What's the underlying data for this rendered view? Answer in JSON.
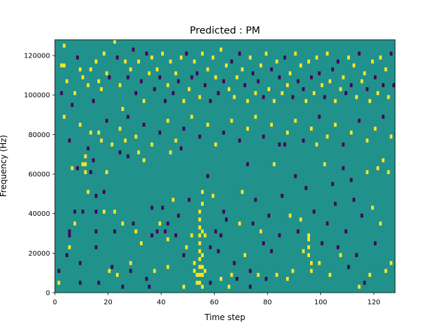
{
  "chart_data": {
    "type": "heatmap",
    "title": "Predicted : PM",
    "xlabel": "Time step",
    "ylabel": "Frequency (Hz)",
    "xlim": [
      0,
      128
    ],
    "ylim": [
      0,
      128000
    ],
    "xticks": [
      0,
      20,
      40,
      60,
      80,
      100,
      120
    ],
    "yticks": [
      0,
      20000,
      40000,
      60000,
      80000,
      100000,
      120000
    ],
    "grid": false,
    "legend": "none",
    "value_levels": [
      -1,
      0,
      1
    ],
    "colors": {
      "-1": "#440154",
      "0": "#21918c",
      "1": "#fde725"
    },
    "background_value": 0,
    "bin_width_steps": 1,
    "bin_height_hz": 2000,
    "cells": [
      [
        1,
        4000,
        1
      ],
      [
        1,
        10000,
        -1
      ],
      [
        2,
        114000,
        1
      ],
      [
        3,
        114000,
        1
      ],
      [
        3,
        124000,
        1
      ],
      [
        4,
        18000,
        -1
      ],
      [
        5,
        30000,
        -1
      ],
      [
        5,
        28000,
        -1
      ],
      [
        5,
        22000,
        1
      ],
      [
        6,
        62000,
        1
      ],
      [
        7,
        40000,
        -1
      ],
      [
        7,
        34000,
        1
      ],
      [
        8,
        62000,
        -1
      ],
      [
        9,
        14000,
        -1
      ],
      [
        9,
        4000,
        -1
      ],
      [
        10,
        64000,
        1
      ],
      [
        10,
        40000,
        -1
      ],
      [
        11,
        68000,
        1
      ],
      [
        11,
        60000,
        1
      ],
      [
        11,
        64000,
        1
      ],
      [
        12,
        50000,
        1
      ],
      [
        13,
        80000,
        1
      ],
      [
        13,
        60000,
        -1
      ],
      [
        14,
        66000,
        -1
      ],
      [
        15,
        48000,
        -1
      ],
      [
        15,
        40000,
        -1
      ],
      [
        15,
        30000,
        -1
      ],
      [
        15,
        22000,
        -1
      ],
      [
        16,
        4000,
        -1
      ],
      [
        17,
        76000,
        1
      ],
      [
        18,
        40000,
        1
      ],
      [
        18,
        50000,
        -1
      ],
      [
        19,
        60000,
        1
      ],
      [
        20,
        10000,
        1
      ],
      [
        21,
        12000,
        -1
      ],
      [
        22,
        40000,
        1
      ],
      [
        22,
        30000,
        -1
      ],
      [
        23,
        8000,
        1
      ],
      [
        24,
        70000,
        -1
      ],
      [
        25,
        34000,
        1
      ],
      [
        25,
        2000,
        -1
      ],
      [
        26,
        76000,
        1
      ],
      [
        27,
        68000,
        -1
      ],
      [
        28,
        10000,
        -1
      ],
      [
        28,
        14000,
        1
      ],
      [
        29,
        34000,
        -1
      ],
      [
        30,
        30000,
        1
      ],
      [
        31,
        70000,
        1
      ],
      [
        32,
        24000,
        1
      ],
      [
        33,
        66000,
        1
      ],
      [
        34,
        6000,
        -1
      ],
      [
        35,
        2000,
        -1
      ],
      [
        36,
        42000,
        -1
      ],
      [
        36,
        28000,
        -1
      ],
      [
        37,
        10000,
        1
      ],
      [
        38,
        30000,
        -1
      ],
      [
        39,
        34000,
        1
      ],
      [
        40,
        42000,
        -1
      ],
      [
        41,
        30000,
        -1
      ],
      [
        42,
        26000,
        1
      ],
      [
        42,
        34000,
        -1
      ],
      [
        42,
        12000,
        1
      ],
      [
        43,
        70000,
        1
      ],
      [
        44,
        46000,
        1
      ],
      [
        45,
        28000,
        -1
      ],
      [
        46,
        38000,
        -1
      ],
      [
        47,
        72000,
        -1
      ],
      [
        48,
        18000,
        -1
      ],
      [
        48,
        2000,
        1
      ],
      [
        49,
        22000,
        1
      ],
      [
        50,
        46000,
        -1
      ],
      [
        51,
        28000,
        1
      ],
      [
        52,
        14000,
        1
      ],
      [
        52,
        10000,
        1
      ],
      [
        53,
        4000,
        1
      ],
      [
        53,
        8000,
        1
      ],
      [
        54,
        40000,
        1
      ],
      [
        54,
        36000,
        1
      ],
      [
        54,
        32000,
        1
      ],
      [
        54,
        28000,
        1
      ],
      [
        54,
        24000,
        1
      ],
      [
        54,
        20000,
        1
      ],
      [
        54,
        16000,
        1
      ],
      [
        54,
        12000,
        1
      ],
      [
        54,
        8000,
        1
      ],
      [
        54,
        4000,
        1
      ],
      [
        55,
        50000,
        1
      ],
      [
        55,
        44000,
        1
      ],
      [
        55,
        30000,
        1
      ],
      [
        55,
        18000,
        1
      ],
      [
        55,
        12000,
        1
      ],
      [
        55,
        8000,
        1
      ],
      [
        55,
        2000,
        1
      ],
      [
        56,
        28000,
        1
      ],
      [
        56,
        10000,
        1
      ],
      [
        57,
        58000,
        -1
      ],
      [
        58,
        4000,
        -1
      ],
      [
        58,
        22000,
        -1
      ],
      [
        59,
        48000,
        1
      ],
      [
        60,
        30000,
        -1
      ],
      [
        61,
        20000,
        -1
      ],
      [
        62,
        28000,
        -1
      ],
      [
        62,
        6000,
        1
      ],
      [
        63,
        40000,
        -1
      ],
      [
        64,
        36000,
        -1
      ],
      [
        65,
        2000,
        1
      ],
      [
        66,
        8000,
        1
      ],
      [
        67,
        14000,
        -1
      ],
      [
        68,
        6000,
        -1
      ],
      [
        69,
        34000,
        1
      ],
      [
        70,
        50000,
        1
      ],
      [
        71,
        18000,
        1
      ],
      [
        72,
        64000,
        -1
      ],
      [
        73,
        10000,
        -1
      ],
      [
        73,
        2000,
        -1
      ],
      [
        74,
        34000,
        -1
      ],
      [
        75,
        46000,
        -1
      ],
      [
        76,
        8000,
        1
      ],
      [
        77,
        30000,
        1
      ],
      [
        78,
        24000,
        -1
      ],
      [
        79,
        6000,
        -1
      ],
      [
        80,
        38000,
        -1
      ],
      [
        81,
        20000,
        -1
      ],
      [
        82,
        64000,
        1
      ],
      [
        83,
        8000,
        1
      ],
      [
        84,
        28000,
        -1
      ],
      [
        85,
        48000,
        -1
      ],
      [
        86,
        74000,
        -1
      ],
      [
        87,
        6000,
        1
      ],
      [
        88,
        38000,
        1
      ],
      [
        89,
        10000,
        1
      ],
      [
        90,
        58000,
        -1
      ],
      [
        91,
        30000,
        -1
      ],
      [
        92,
        36000,
        1
      ],
      [
        93,
        20000,
        1
      ],
      [
        94,
        52000,
        -1
      ],
      [
        95,
        28000,
        1
      ],
      [
        95,
        26000,
        1
      ],
      [
        95,
        22000,
        1
      ],
      [
        95,
        18000,
        1
      ],
      [
        96,
        14000,
        1
      ],
      [
        96,
        10000,
        1
      ],
      [
        97,
        40000,
        -1
      ],
      [
        98,
        74000,
        1
      ],
      [
        99,
        14000,
        1
      ],
      [
        100,
        24000,
        -1
      ],
      [
        101,
        64000,
        1
      ],
      [
        102,
        34000,
        -1
      ],
      [
        103,
        8000,
        1
      ],
      [
        104,
        54000,
        -1
      ],
      [
        105,
        44000,
        -1
      ],
      [
        106,
        22000,
        -1
      ],
      [
        107,
        18000,
        1
      ],
      [
        108,
        62000,
        -1
      ],
      [
        109,
        30000,
        -1
      ],
      [
        110,
        12000,
        -1
      ],
      [
        111,
        56000,
        -1
      ],
      [
        112,
        46000,
        -1
      ],
      [
        113,
        18000,
        -1
      ],
      [
        114,
        2000,
        1
      ],
      [
        115,
        38000,
        -1
      ],
      [
        116,
        4000,
        -1
      ],
      [
        117,
        60000,
        1
      ],
      [
        118,
        8000,
        1
      ],
      [
        119,
        42000,
        1
      ],
      [
        120,
        24000,
        -1
      ],
      [
        121,
        62000,
        1
      ],
      [
        122,
        34000,
        1
      ],
      [
        123,
        66000,
        1
      ],
      [
        124,
        10000,
        1
      ],
      [
        125,
        60000,
        1
      ],
      [
        126,
        14000,
        1
      ],
      [
        127,
        104000,
        -1
      ],
      [
        2,
        100000,
        -1
      ],
      [
        4,
        106000,
        1
      ],
      [
        6,
        94000,
        -1
      ],
      [
        7,
        100000,
        1
      ],
      [
        8,
        118000,
        -1
      ],
      [
        9,
        112000,
        1
      ],
      [
        10,
        108000,
        1
      ],
      [
        12,
        104000,
        1
      ],
      [
        13,
        112000,
        1
      ],
      [
        14,
        96000,
        -1
      ],
      [
        15,
        116000,
        1
      ],
      [
        16,
        106000,
        1
      ],
      [
        17,
        102000,
        1
      ],
      [
        18,
        120000,
        1
      ],
      [
        19,
        110000,
        1
      ],
      [
        20,
        108000,
        -1
      ],
      [
        22,
        126000,
        1
      ],
      [
        23,
        118000,
        -1
      ],
      [
        24,
        104000,
        1
      ],
      [
        25,
        92000,
        1
      ],
      [
        26,
        116000,
        1
      ],
      [
        27,
        108000,
        -1
      ],
      [
        28,
        112000,
        1
      ],
      [
        29,
        122000,
        -1
      ],
      [
        30,
        100000,
        -1
      ],
      [
        31,
        116000,
        1
      ],
      [
        32,
        106000,
        -1
      ],
      [
        33,
        96000,
        1
      ],
      [
        34,
        120000,
        -1
      ],
      [
        35,
        110000,
        1
      ],
      [
        36,
        118000,
        1
      ],
      [
        37,
        102000,
        -1
      ],
      [
        38,
        112000,
        1
      ],
      [
        39,
        108000,
        -1
      ],
      [
        40,
        120000,
        1
      ],
      [
        41,
        96000,
        -1
      ],
      [
        42,
        104000,
        1
      ],
      [
        43,
        116000,
        1
      ],
      [
        44,
        100000,
        -1
      ],
      [
        45,
        110000,
        1
      ],
      [
        46,
        106000,
        -1
      ],
      [
        47,
        118000,
        1
      ],
      [
        48,
        96000,
        1
      ],
      [
        49,
        120000,
        -1
      ],
      [
        50,
        102000,
        1
      ],
      [
        51,
        108000,
        -1
      ],
      [
        52,
        116000,
        1
      ],
      [
        53,
        110000,
        -1
      ],
      [
        54,
        98000,
        1
      ],
      [
        55,
        120000,
        1
      ],
      [
        56,
        104000,
        -1
      ],
      [
        57,
        112000,
        1
      ],
      [
        58,
        96000,
        -1
      ],
      [
        59,
        118000,
        1
      ],
      [
        60,
        108000,
        1
      ],
      [
        61,
        100000,
        -1
      ],
      [
        62,
        122000,
        1
      ],
      [
        63,
        106000,
        -1
      ],
      [
        64,
        114000,
        1
      ],
      [
        65,
        102000,
        1
      ],
      [
        66,
        116000,
        -1
      ],
      [
        67,
        98000,
        1
      ],
      [
        68,
        108000,
        1
      ],
      [
        69,
        120000,
        -1
      ],
      [
        70,
        112000,
        1
      ],
      [
        71,
        104000,
        -1
      ],
      [
        72,
        96000,
        1
      ],
      [
        73,
        118000,
        1
      ],
      [
        74,
        110000,
        -1
      ],
      [
        75,
        100000,
        1
      ],
      [
        76,
        106000,
        -1
      ],
      [
        77,
        114000,
        1
      ],
      [
        78,
        98000,
        -1
      ],
      [
        79,
        120000,
        1
      ],
      [
        80,
        102000,
        1
      ],
      [
        81,
        112000,
        -1
      ],
      [
        82,
        96000,
        1
      ],
      [
        83,
        116000,
        1
      ],
      [
        84,
        108000,
        -1
      ],
      [
        85,
        100000,
        1
      ],
      [
        86,
        118000,
        -1
      ],
      [
        87,
        104000,
        1
      ],
      [
        88,
        110000,
        1
      ],
      [
        89,
        98000,
        -1
      ],
      [
        90,
        120000,
        1
      ],
      [
        91,
        106000,
        -1
      ],
      [
        92,
        114000,
        1
      ],
      [
        93,
        102000,
        -1
      ],
      [
        94,
        96000,
        1
      ],
      [
        95,
        116000,
        1
      ],
      [
        96,
        108000,
        -1
      ],
      [
        97,
        100000,
        1
      ],
      [
        98,
        118000,
        1
      ],
      [
        99,
        110000,
        -1
      ],
      [
        100,
        104000,
        1
      ],
      [
        101,
        98000,
        -1
      ],
      [
        102,
        120000,
        1
      ],
      [
        103,
        106000,
        1
      ],
      [
        104,
        112000,
        -1
      ],
      [
        105,
        96000,
        1
      ],
      [
        106,
        116000,
        -1
      ],
      [
        107,
        102000,
        1
      ],
      [
        108,
        108000,
        1
      ],
      [
        109,
        100000,
        -1
      ],
      [
        110,
        118000,
        1
      ],
      [
        111,
        104000,
        -1
      ],
      [
        112,
        114000,
        1
      ],
      [
        113,
        98000,
        1
      ],
      [
        114,
        120000,
        -1
      ],
      [
        115,
        106000,
        1
      ],
      [
        116,
        110000,
        1
      ],
      [
        117,
        102000,
        -1
      ],
      [
        118,
        96000,
        1
      ],
      [
        119,
        116000,
        1
      ],
      [
        120,
        108000,
        -1
      ],
      [
        121,
        100000,
        1
      ],
      [
        122,
        118000,
        1
      ],
      [
        123,
        104000,
        -1
      ],
      [
        124,
        112000,
        1
      ],
      [
        125,
        98000,
        1
      ],
      [
        126,
        120000,
        -1
      ],
      [
        3,
        88000,
        1
      ],
      [
        5,
        76000,
        -1
      ],
      [
        9,
        84000,
        1
      ],
      [
        12,
        72000,
        -1
      ],
      [
        16,
        80000,
        1
      ],
      [
        19,
        86000,
        -1
      ],
      [
        21,
        74000,
        1
      ],
      [
        24,
        82000,
        1
      ],
      [
        27,
        88000,
        -1
      ],
      [
        30,
        78000,
        1
      ],
      [
        33,
        84000,
        -1
      ],
      [
        36,
        74000,
        1
      ],
      [
        39,
        80000,
        -1
      ],
      [
        42,
        86000,
        1
      ],
      [
        45,
        76000,
        1
      ],
      [
        48,
        82000,
        -1
      ],
      [
        51,
        88000,
        1
      ],
      [
        54,
        78000,
        -1
      ],
      [
        57,
        84000,
        1
      ],
      [
        60,
        74000,
        1
      ],
      [
        63,
        80000,
        -1
      ],
      [
        66,
        86000,
        1
      ],
      [
        69,
        76000,
        -1
      ],
      [
        72,
        82000,
        1
      ],
      [
        75,
        88000,
        1
      ],
      [
        78,
        78000,
        -1
      ],
      [
        81,
        84000,
        1
      ],
      [
        84,
        74000,
        -1
      ],
      [
        87,
        80000,
        1
      ],
      [
        90,
        86000,
        1
      ],
      [
        93,
        76000,
        -1
      ],
      [
        96,
        82000,
        1
      ],
      [
        99,
        88000,
        -1
      ],
      [
        102,
        78000,
        1
      ],
      [
        105,
        84000,
        1
      ],
      [
        108,
        74000,
        -1
      ],
      [
        111,
        80000,
        1
      ],
      [
        114,
        86000,
        -1
      ],
      [
        117,
        76000,
        1
      ],
      [
        120,
        82000,
        1
      ],
      [
        123,
        88000,
        -1
      ],
      [
        126,
        78000,
        1
      ]
    ]
  }
}
